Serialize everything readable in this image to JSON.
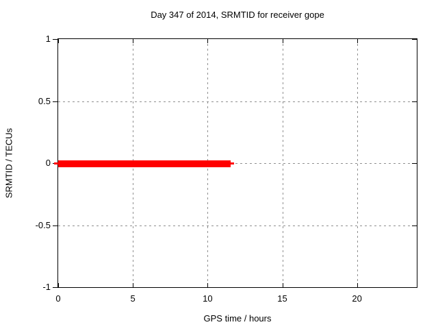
{
  "chart_data": {
    "type": "line",
    "title": "Day 347 of 2014, SRMTID for receiver gope",
    "xlabel": "GPS time / hours",
    "ylabel": "SRMTID / TECUs",
    "xlim": [
      0,
      24
    ],
    "ylim": [
      -1,
      1
    ],
    "xticks": {
      "values": [
        0,
        5,
        10,
        15,
        20
      ],
      "labels": [
        "0",
        "5",
        "10",
        "15",
        "20"
      ]
    },
    "yticks": {
      "values": [
        1,
        0.5,
        0,
        -0.5,
        -1
      ],
      "labels": [
        "1",
        "0.5",
        "0",
        "-0.5",
        "-1"
      ]
    },
    "grid": true,
    "legend": "none",
    "colors": {
      "series": "#ff0000",
      "grid": "#8f8f8f",
      "axis": "#000000",
      "background": "#ffffff",
      "text": "#000000"
    },
    "series": [
      {
        "name": "SRMTID",
        "color": "#ff0000",
        "y_value": 0,
        "x_start": 0,
        "x_end": 11.54,
        "segments": [
          {
            "x1": -0.27,
            "x2": 0,
            "thickness_px": 3
          },
          {
            "x1": 0,
            "x2": 11.54,
            "thickness_px": 10
          },
          {
            "x1": 11.54,
            "x2": 11.78,
            "thickness_px": 3
          }
        ]
      }
    ]
  }
}
